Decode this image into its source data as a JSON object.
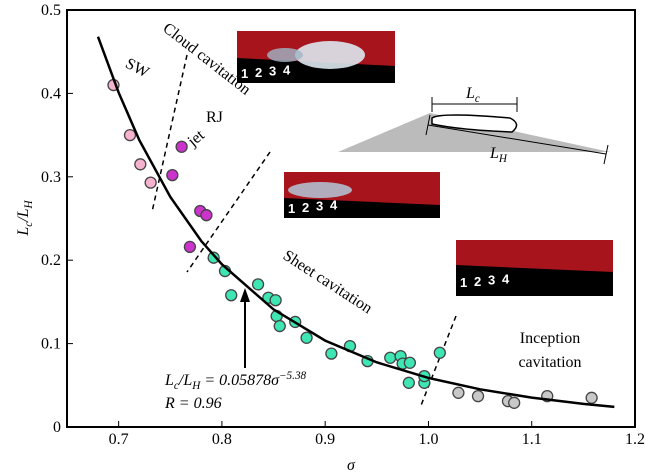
{
  "chart_data": {
    "type": "scatter",
    "xlabel": "σ",
    "ylabel_parts": [
      "L",
      "c",
      "/L",
      "H"
    ],
    "xlim": [
      0.65,
      1.2
    ],
    "ylim": [
      0,
      0.5
    ],
    "xticks": [
      0.7,
      0.8,
      0.9,
      {
        "value": 1,
        "label": "1.0"
      },
      1.1,
      1.2
    ],
    "yticks": [
      0,
      0.1,
      0.2,
      0.3,
      0.4,
      0.5
    ],
    "series": [
      {
        "style": "marker",
        "color": "#f5b3cf",
        "x": [
          0.695,
          0.711,
          0.721,
          0.731
        ],
        "values": [
          0.41,
          0.35,
          0.315,
          0.293
        ]
      },
      {
        "style": "marker",
        "color": "#cc33cc",
        "x": [
          0.761,
          0.752,
          0.779,
          0.785,
          0.769
        ],
        "values": [
          0.336,
          0.302,
          0.259,
          0.254,
          0.216
        ]
      },
      {
        "style": "marker",
        "color": "#3ee6b4",
        "x": [
          0.792,
          0.803,
          0.809,
          0.835,
          0.845,
          0.852,
          0.853,
          0.856,
          0.871,
          0.882,
          0.906,
          0.924,
          0.941,
          0.963,
          0.973,
          0.975,
          0.982,
          0.981,
          0.996,
          0.996,
          1.011
        ],
        "values": [
          0.203,
          0.187,
          0.158,
          0.171,
          0.155,
          0.152,
          0.133,
          0.121,
          0.126,
          0.107,
          0.088,
          0.097,
          0.079,
          0.083,
          0.085,
          0.076,
          0.077,
          0.053,
          0.053,
          0.061,
          0.089
        ]
      },
      {
        "style": "marker",
        "color": "#c8c8c8",
        "x": [
          1.029,
          1.048,
          1.077,
          1.083,
          1.115,
          1.158
        ],
        "values": [
          0.041,
          0.037,
          0.031,
          0.029,
          0.037,
          0.035
        ]
      },
      {
        "style": "line",
        "color": "#000000",
        "x": [
          0.68,
          0.7,
          0.72,
          0.75,
          0.78,
          0.8,
          0.85,
          0.9,
          0.95,
          1.0,
          1.05,
          1.1,
          1.15,
          1.18
        ],
        "values": [
          0.468,
          0.401,
          0.344,
          0.276,
          0.223,
          0.195,
          0.141,
          0.1036,
          0.0775,
          0.0588,
          0.0452,
          0.0352,
          0.0277,
          0.0241
        ]
      }
    ],
    "annotations": {
      "sw": "SW",
      "cloud": "Cloud cavitation",
      "rj": "RJ",
      "jet": "jet",
      "sheet": "Sheet cavitation",
      "inception_1": "Inception",
      "inception_2": "cavitation",
      "equation_parts": [
        "L",
        "c",
        "/L",
        "H",
        " = 0.05878σ",
        "−5.38"
      ],
      "r": "R = 0.96",
      "photo_labels": [
        "1",
        "2",
        "3",
        "4"
      ],
      "diagram_lc": [
        "L",
        "c"
      ],
      "diagram_lh": [
        "L",
        "H"
      ]
    }
  }
}
